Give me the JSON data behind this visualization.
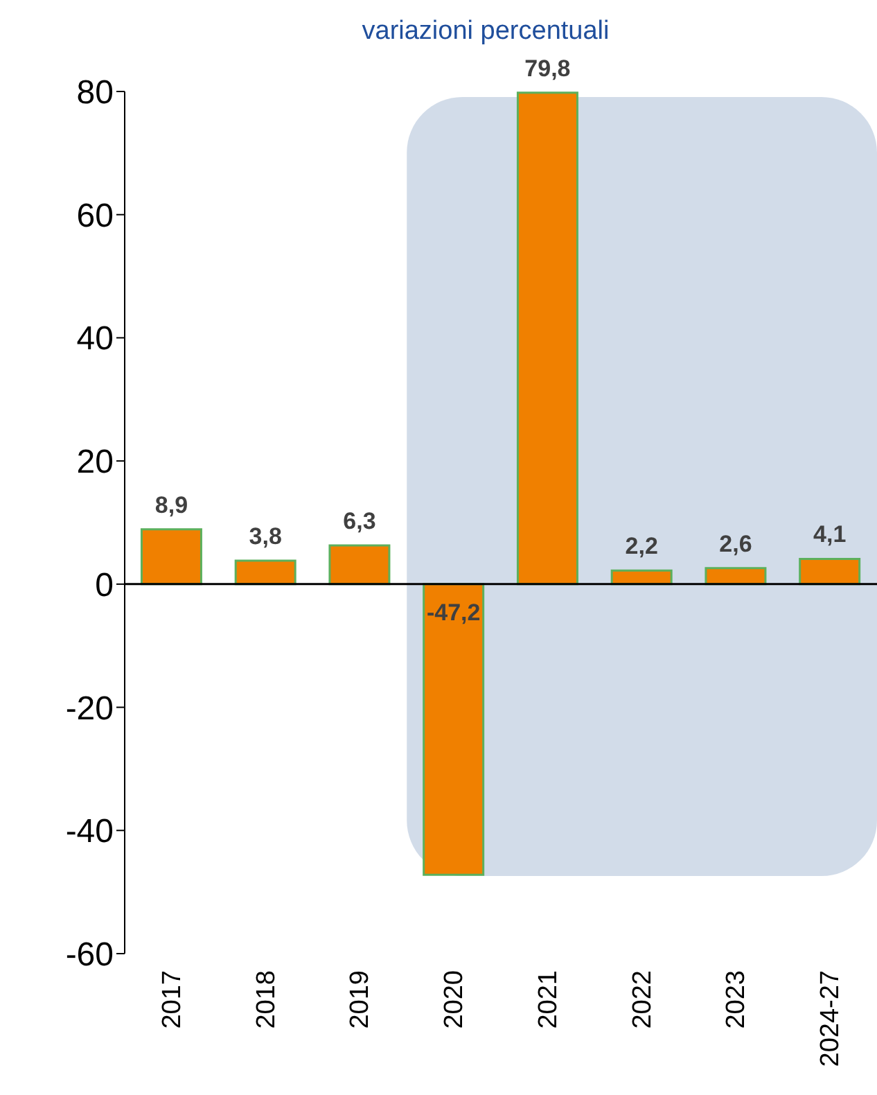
{
  "chart_data": {
    "type": "bar",
    "title": "variazioni percentuali",
    "categories": [
      "2017",
      "2018",
      "2019",
      "2020",
      "2021",
      "2022",
      "2023",
      "2024-27"
    ],
    "values": [
      8.9,
      3.8,
      6.3,
      -47.2,
      79.8,
      2.2,
      2.6,
      4.1
    ],
    "value_labels": [
      "8,9",
      "3,8",
      "6,3",
      "-47,2",
      "79,8",
      "2,2",
      "2,6",
      "4,1"
    ],
    "color": "#f08000",
    "ylim": [
      -60,
      80
    ],
    "yticks": [
      -60,
      -40,
      -20,
      0,
      20,
      40,
      60,
      80
    ],
    "bands": [
      {
        "axis": "x",
        "from": "2020",
        "to": "2024-27",
        "color": "#b4c4da"
      }
    ]
  }
}
